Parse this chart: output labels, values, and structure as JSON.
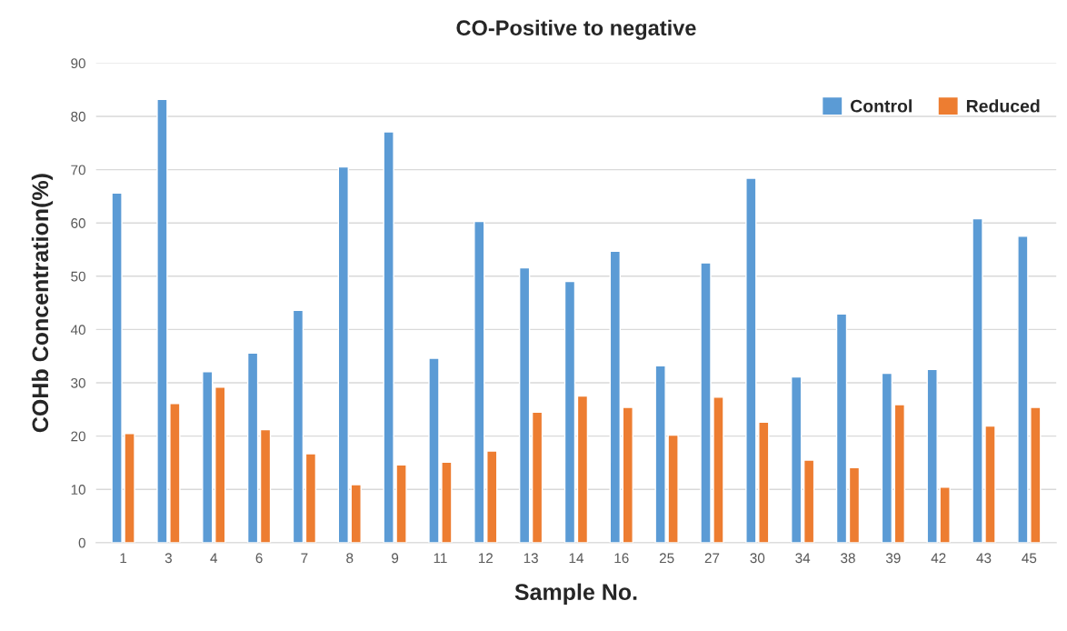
{
  "chart_data": {
    "type": "bar",
    "title": "CO-Positive to negative",
    "xlabel": "Sample No.",
    "ylabel": "COHb Concentration(%)",
    "categories": [
      "1",
      "3",
      "4",
      "6",
      "7",
      "8",
      "9",
      "11",
      "12",
      "13",
      "14",
      "16",
      "25",
      "27",
      "30",
      "34",
      "38",
      "39",
      "42",
      "43",
      "45"
    ],
    "series": [
      {
        "name": "Control",
        "color": "#5b9bd5",
        "values": [
          65.6,
          83.2,
          32.1,
          35.6,
          43.6,
          70.5,
          77.1,
          34.6,
          60.3,
          51.6,
          49.0,
          54.7,
          33.2,
          52.5,
          68.4,
          31.1,
          42.9,
          31.8,
          32.5,
          60.8,
          57.5
        ]
      },
      {
        "name": "Reduced",
        "color": "#ed7d31",
        "values": [
          20.5,
          26.1,
          29.2,
          21.2,
          16.7,
          10.9,
          14.6,
          15.1,
          17.2,
          24.5,
          27.5,
          25.4,
          20.2,
          27.3,
          22.6,
          15.5,
          14.1,
          25.9,
          10.4,
          21.9,
          25.4
        ]
      }
    ],
    "ylim": [
      0,
      90
    ],
    "yticks": [
      0,
      10,
      20,
      30,
      40,
      50,
      60,
      70,
      80,
      90
    ],
    "grid": "y",
    "legend": "top right"
  }
}
